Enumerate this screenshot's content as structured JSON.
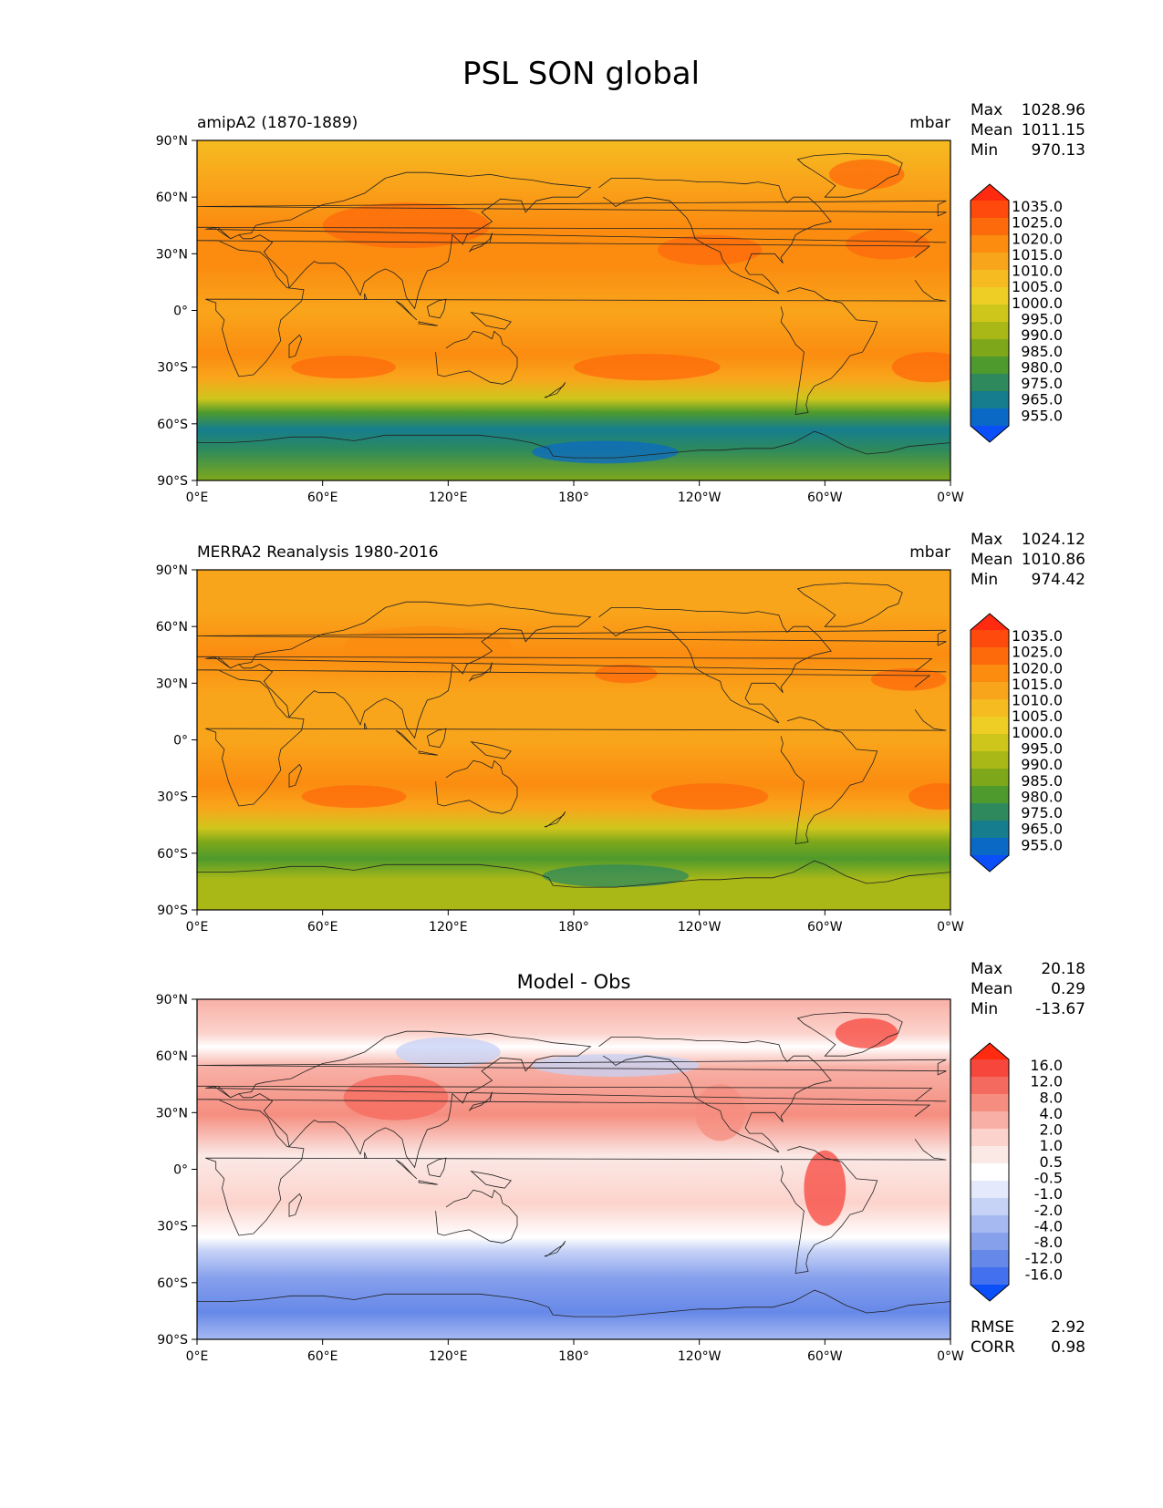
{
  "title": "PSL SON global",
  "lat_ticks": [
    "90°N",
    "60°N",
    "30°N",
    "0°",
    "30°S",
    "60°S",
    "90°S"
  ],
  "lon_ticks": [
    "0°E",
    "60°E",
    "120°E",
    "180°",
    "120°W",
    "60°W",
    "0°W"
  ],
  "panels": [
    {
      "id": "model",
      "left_title": "amipA2 (1870-1889)",
      "center_title": "",
      "right_title": "mbar",
      "stats": [
        {
          "label": "Max",
          "value": "1028.96"
        },
        {
          "label": "Mean",
          "value": "1011.15"
        },
        {
          "label": "Min",
          "value": "970.13"
        }
      ],
      "colorbar": {
        "labels": [
          "1035.0",
          "1025.0",
          "1020.0",
          "1015.0",
          "1010.0",
          "1005.0",
          "1000.0",
          "995.0",
          "990.0",
          "985.0",
          "980.0",
          "975.0",
          "965.0",
          "955.0"
        ],
        "colors": [
          "#ff2a10",
          "#fe4a0c",
          "#fd6a0b",
          "#fb8c10",
          "#f9a51b",
          "#f5bb20",
          "#eecd25",
          "#cfc61c",
          "#a9b817",
          "#7ea81a",
          "#4e9a2c",
          "#2e8a5c",
          "#157d8e",
          "#0b69c6",
          "#0a4ff8"
        ]
      },
      "extra_stats": []
    },
    {
      "id": "obs",
      "left_title": "MERRA2 Reanalysis 1980-2016",
      "center_title": "",
      "right_title": "mbar",
      "stats": [
        {
          "label": "Max",
          "value": "1024.12"
        },
        {
          "label": "Mean",
          "value": "1010.86"
        },
        {
          "label": "Min",
          "value": "974.42"
        }
      ],
      "colorbar": {
        "labels": [
          "1035.0",
          "1025.0",
          "1020.0",
          "1015.0",
          "1010.0",
          "1005.0",
          "1000.0",
          "995.0",
          "990.0",
          "985.0",
          "980.0",
          "975.0",
          "965.0",
          "955.0"
        ],
        "colors": [
          "#ff2a10",
          "#fe4a0c",
          "#fd6a0b",
          "#fb8c10",
          "#f9a51b",
          "#f5bb20",
          "#eecd25",
          "#cfc61c",
          "#a9b817",
          "#7ea81a",
          "#4e9a2c",
          "#2e8a5c",
          "#157d8e",
          "#0b69c6",
          "#0a4ff8"
        ]
      },
      "extra_stats": []
    },
    {
      "id": "diff",
      "left_title": "",
      "center_title": "Model - Obs",
      "right_title": "",
      "stats": [
        {
          "label": "Max",
          "value": "20.18"
        },
        {
          "label": "Mean",
          "value": "0.29"
        },
        {
          "label": "Min",
          "value": "-13.67"
        }
      ],
      "colorbar": {
        "labels": [
          "16.0",
          "12.0",
          "8.0",
          "4.0",
          "2.0",
          "1.0",
          "0.5",
          "-0.5",
          "-1.0",
          "-2.0",
          "-4.0",
          "-8.0",
          "-12.0",
          "-16.0"
        ],
        "colors": [
          "#ff2a10",
          "#f7463c",
          "#f56a5e",
          "#f58e80",
          "#f8b0a6",
          "#fcd3cc",
          "#fbe9e6",
          "#ffffff",
          "#e4e9fb",
          "#c6d2f6",
          "#a6b9f1",
          "#86a0ec",
          "#6688e8",
          "#4370ee",
          "#0a4ff8"
        ]
      },
      "extra_stats": [
        {
          "label": "RMSE",
          "value": "2.92"
        },
        {
          "label": "CORR",
          "value": "0.98"
        }
      ]
    }
  ]
}
